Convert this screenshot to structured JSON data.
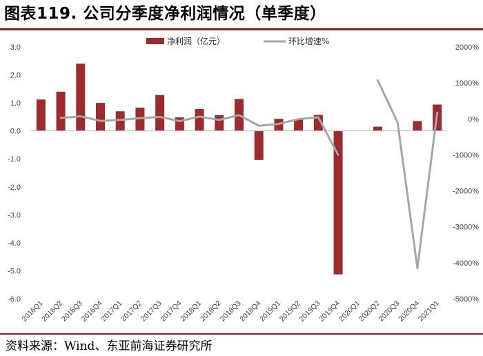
{
  "header": {
    "title": "图表119. 公司分季度净利润情况（单季度）"
  },
  "footer": {
    "source": "资料来源：Wind、东亚前海证券研究所"
  },
  "colors": {
    "bar": "#9b2b2e",
    "line": "#a6a6a6",
    "rule": "#8c1c1f"
  },
  "chart_data": {
    "type": "bar",
    "categories": [
      "2016Q1",
      "2016Q2",
      "2016Q3",
      "2016Q4",
      "2017Q1",
      "2017Q2",
      "2017Q3",
      "2017Q4",
      "2018Q1",
      "2018Q2",
      "2018Q3",
      "2018Q4",
      "2019Q1",
      "2019Q2",
      "2019Q3",
      "2019Q4",
      "2020Q1",
      "2020Q2",
      "2020Q3",
      "2020Q4",
      "2021Q1"
    ],
    "series": [
      {
        "name": "净利润（亿元）",
        "type": "bar",
        "axis": "left",
        "values": [
          1.12,
          1.4,
          2.4,
          1.0,
          0.7,
          0.83,
          1.28,
          0.48,
          0.78,
          0.56,
          1.14,
          -1.04,
          0.43,
          0.4,
          0.57,
          -5.13,
          null,
          0.15,
          null,
          0.35,
          0.94
        ]
      },
      {
        "name": "环比增速%",
        "type": "line",
        "axis": "right",
        "values": [
          null,
          25,
          71,
          -58,
          -30,
          19,
          54,
          -63,
          63,
          -28,
          104,
          -191,
          -141,
          -7,
          43,
          -1000,
          null,
          1070,
          -100,
          -4150,
          170
        ]
      }
    ],
    "left_axis": {
      "ylim": [
        -6.0,
        3.0
      ],
      "ticks": [
        "3.0",
        "2.0",
        "1.0",
        "0.0",
        "-1.0",
        "-2.0",
        "-3.0",
        "-4.0",
        "-5.0",
        "-6.0"
      ]
    },
    "right_axis": {
      "ylim": [
        -5000,
        2000
      ],
      "ticks": [
        "2000%",
        "1000%",
        "0%",
        "-1000%",
        "-2000%",
        "-3000%",
        "-4000%",
        "-5000%"
      ]
    },
    "legend_position": "top-center",
    "grid": false
  }
}
